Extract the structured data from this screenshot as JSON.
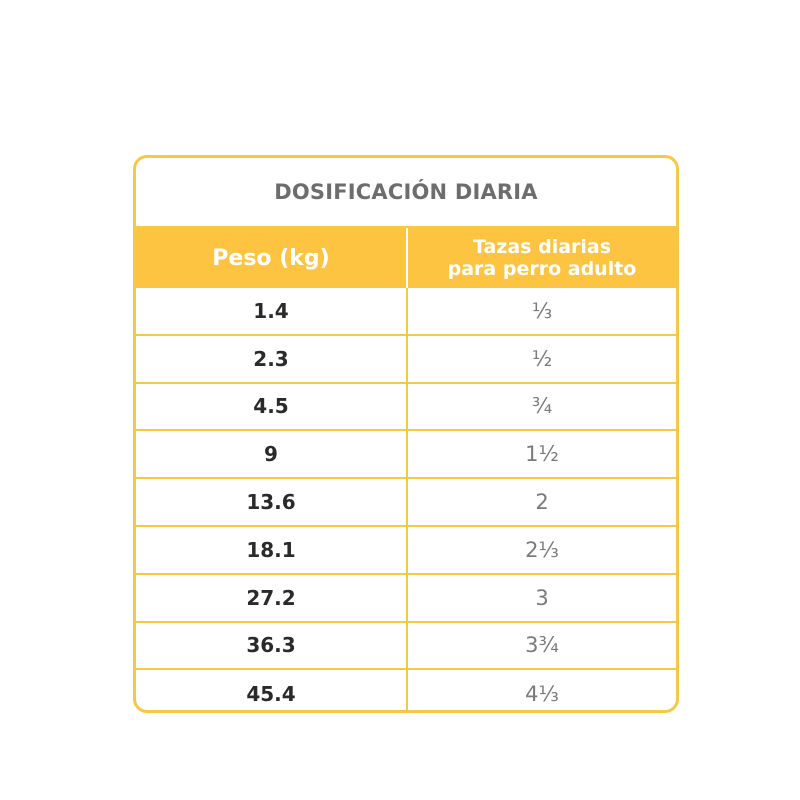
{
  "table": {
    "title": "DOSIFICACIÓN DIARIA",
    "header": {
      "col1": "Peso (kg)",
      "col2_line1": "Tazas diarias",
      "col2_line2": "para perro adulto"
    },
    "rows": [
      {
        "weight": "1.4",
        "cups": "⅓"
      },
      {
        "weight": "2.3",
        "cups": "½"
      },
      {
        "weight": "4.5",
        "cups": "¾"
      },
      {
        "weight": "9",
        "cups": "1½"
      },
      {
        "weight": "13.6",
        "cups": "2"
      },
      {
        "weight": "18.1",
        "cups": "2⅓"
      },
      {
        "weight": "27.2",
        "cups": "3"
      },
      {
        "weight": "36.3",
        "cups": "3¾"
      },
      {
        "weight": "45.4",
        "cups": "4⅓"
      }
    ]
  },
  "colors": {
    "accent": "#fcc440",
    "border": "#f7c843",
    "title_text": "#6d6d6d",
    "value_text": "#2a2a2a",
    "cups_text": "#7a7a7a"
  }
}
